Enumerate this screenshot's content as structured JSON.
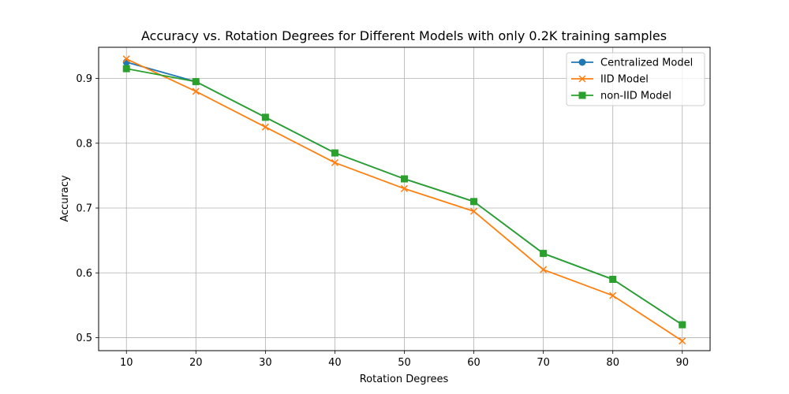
{
  "chart_data": {
    "type": "line",
    "title": "Accuracy vs. Rotation Degrees for Different Models with only 0.2K training samples",
    "xlabel": "Rotation Degrees",
    "ylabel": "Accuracy",
    "x": [
      10,
      20,
      30,
      40,
      50,
      60,
      70,
      80,
      90
    ],
    "xticks": [
      "10",
      "20",
      "30",
      "40",
      "50",
      "60",
      "70",
      "80",
      "90"
    ],
    "yticks": [
      "0.5",
      "0.6",
      "0.7",
      "0.8",
      "0.9"
    ],
    "xlim": [
      6,
      94
    ],
    "ylim": [
      0.48,
      0.948
    ],
    "grid": true,
    "legend_position": "top-right",
    "series": [
      {
        "name": "Centralized Model",
        "color": "#1f77b4",
        "marker": "circle",
        "values": [
          0.925,
          0.895,
          0.84,
          0.785,
          0.745,
          0.71,
          0.63,
          0.59,
          0.52
        ]
      },
      {
        "name": "IID Model",
        "color": "#ff7f0e",
        "marker": "x",
        "values": [
          0.93,
          0.88,
          0.825,
          0.77,
          0.73,
          0.695,
          0.605,
          0.565,
          0.495
        ]
      },
      {
        "name": "non-IID Model",
        "color": "#2ca02c",
        "marker": "square",
        "values": [
          0.915,
          0.895,
          0.84,
          0.785,
          0.745,
          0.71,
          0.63,
          0.59,
          0.52
        ]
      }
    ]
  }
}
